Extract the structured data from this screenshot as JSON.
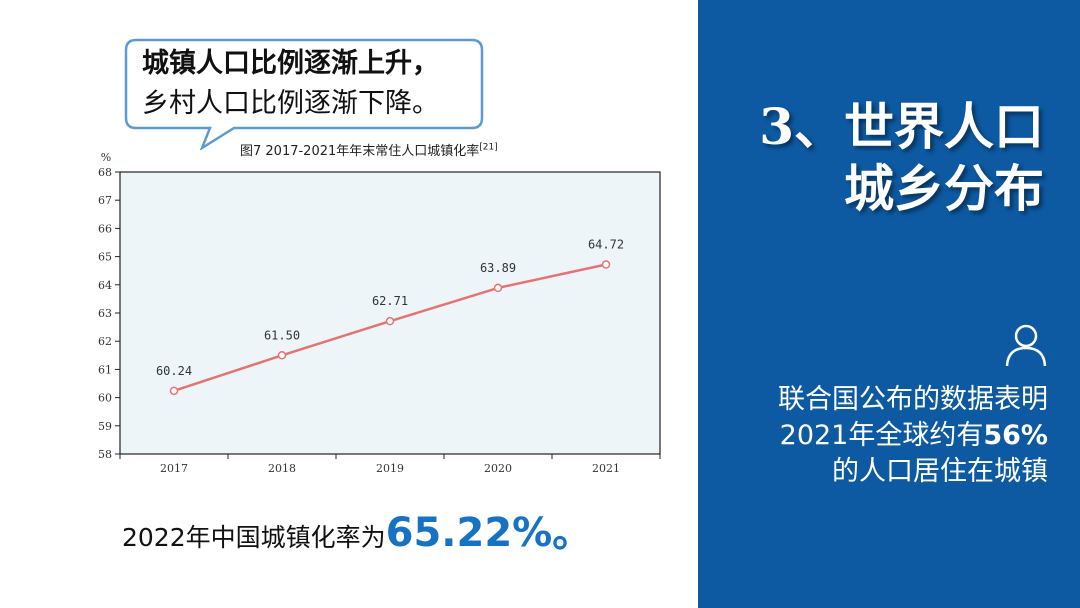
{
  "callout": {
    "line1": "城镇人口比例逐渐上升，",
    "line2": "乡村人口比例逐渐下降。"
  },
  "chart_data": {
    "type": "line",
    "title": "图7   2017-2021年年末常住人口城镇化率",
    "title_ref": "[21]",
    "ylabel": "%",
    "xlabel": "",
    "categories": [
      "2017",
      "2018",
      "2019",
      "2020",
      "2021"
    ],
    "series": [
      {
        "values": [
          60.24,
          61.5,
          62.71,
          63.89,
          64.72
        ],
        "data_labels": [
          "60.24",
          "61.50",
          "62.71",
          "63.89",
          "64.72"
        ]
      }
    ],
    "ylim": [
      58,
      68
    ],
    "yticks": [
      58,
      59,
      60,
      61,
      62,
      63,
      64,
      65,
      66,
      67,
      68
    ],
    "grid": false,
    "legend": "none",
    "colors": {
      "line": "#e57373",
      "plot_background": "#eef5f9"
    }
  },
  "bottom": {
    "text": "2022年中国城镇化率为",
    "value": "65.22%。"
  },
  "panel": {
    "title_line1": "3、世界人口",
    "title_line2": "城乡分布",
    "icon": "user-icon",
    "fact_line1": "联合国公布的数据表明",
    "fact_line2_prefix": "2021年全球约有",
    "fact_line2_value": "56%",
    "fact_line3": "的人口居住在城镇"
  },
  "colors": {
    "panel_background": "#0d5aa3",
    "accent_blue": "#1673c4",
    "text_white": "#ffffff"
  }
}
